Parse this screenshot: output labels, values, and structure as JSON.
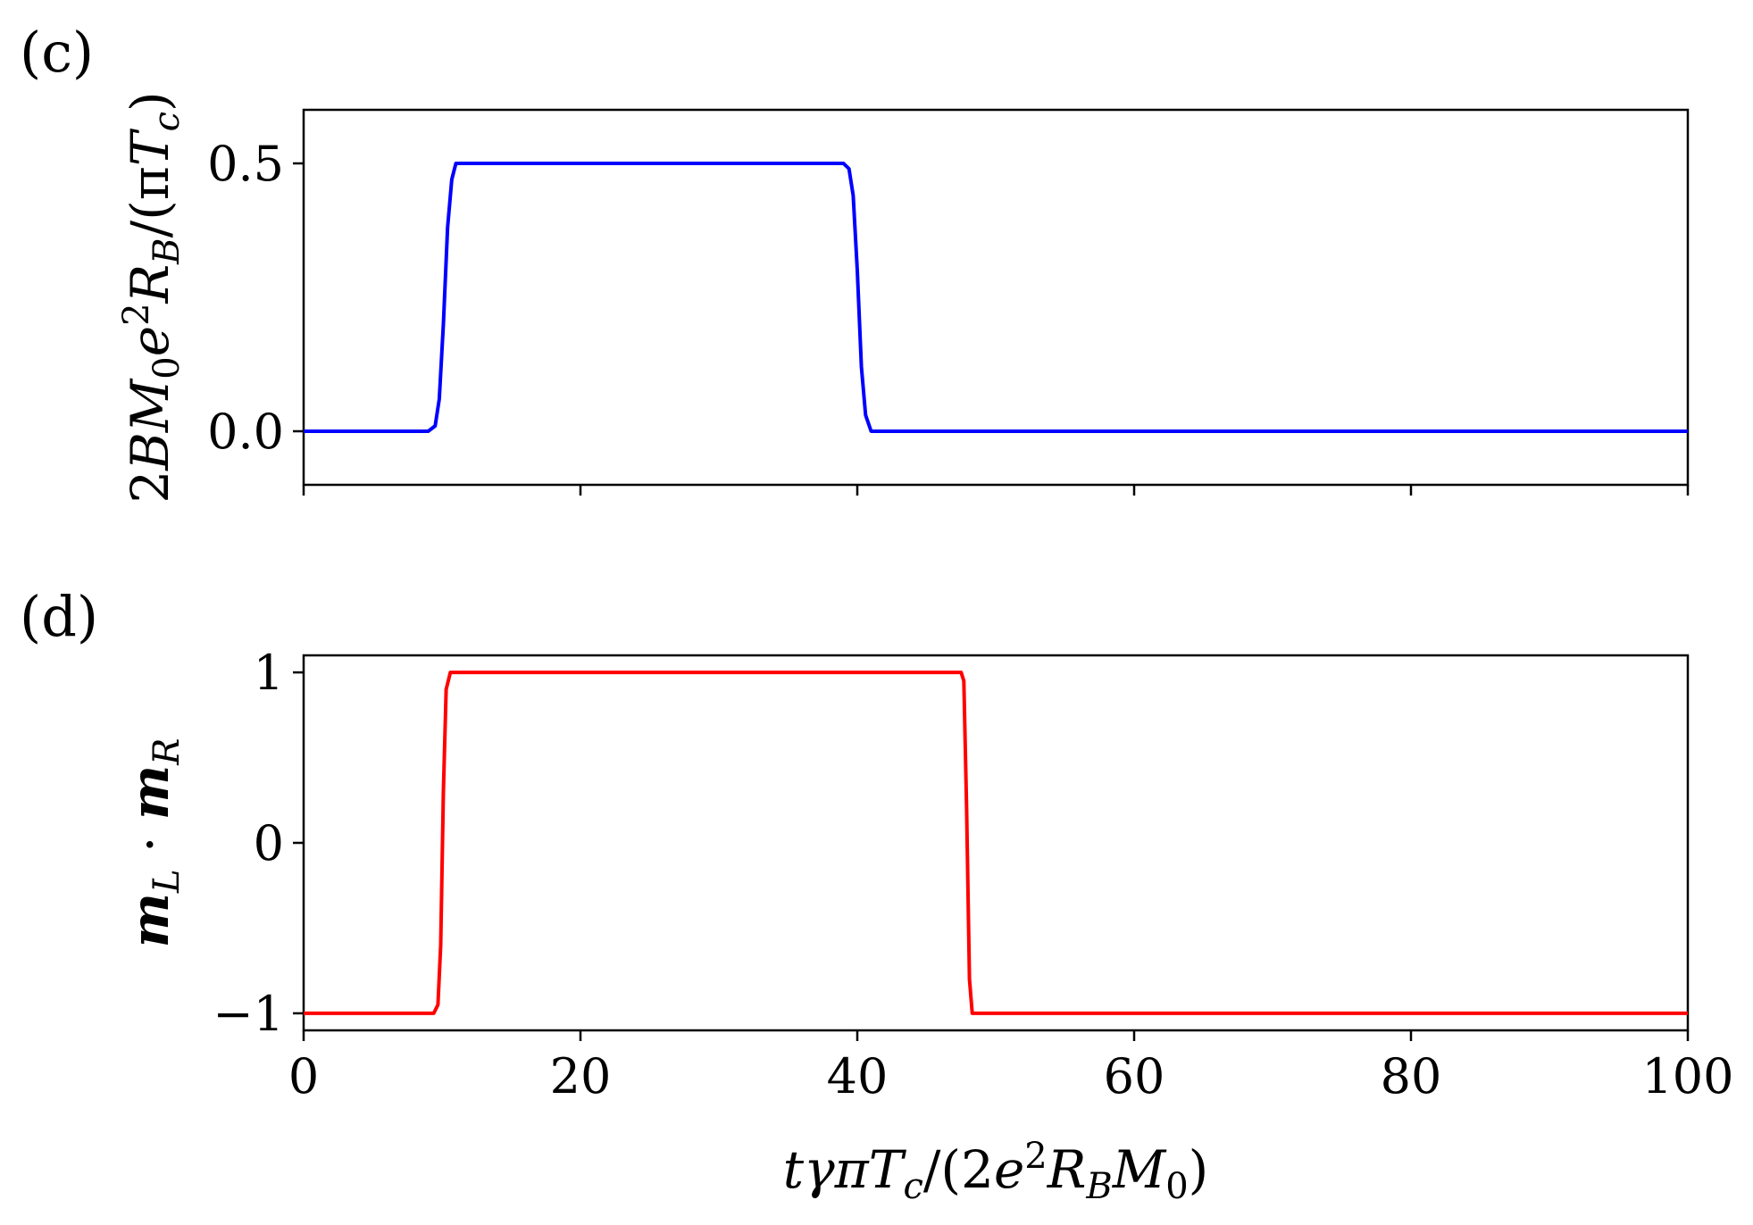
{
  "chart_data": [
    {
      "panel_label": "(c)",
      "type": "line",
      "xlim": [
        0,
        100
      ],
      "ylim": [
        -0.1,
        0.6
      ],
      "x_ticks": [
        0,
        20,
        40,
        60,
        80,
        100
      ],
      "x_tick_labels_shown": false,
      "y_ticks": [
        0.0,
        0.5
      ],
      "y_tick_labels": [
        "0.0",
        "0.5"
      ],
      "ylabel": "2BM₀e²R_B/(πT_c)",
      "xlabel": "",
      "grid": false,
      "series": [
        {
          "color": "#0000ff",
          "x": [
            0,
            9.0,
            9.5,
            9.8,
            10.1,
            10.4,
            10.7,
            11.0,
            12.0,
            39.0,
            39.4,
            39.7,
            40.0,
            40.3,
            40.6,
            41.0,
            100
          ],
          "y": [
            0,
            0,
            0.01,
            0.06,
            0.2,
            0.38,
            0.47,
            0.5,
            0.5,
            0.5,
            0.49,
            0.44,
            0.3,
            0.12,
            0.03,
            0,
            0
          ]
        }
      ]
    },
    {
      "panel_label": "(d)",
      "type": "line",
      "xlim": [
        0,
        100
      ],
      "ylim": [
        -1.1,
        1.1
      ],
      "x_ticks": [
        0,
        20,
        40,
        60,
        80,
        100
      ],
      "x_tick_labels": [
        "0",
        "20",
        "40",
        "60",
        "80",
        "100"
      ],
      "y_ticks": [
        -1,
        0,
        1
      ],
      "y_tick_labels": [
        "−1",
        "0",
        "1"
      ],
      "ylabel": "m_L · m_R",
      "xlabel": "tγπT_c/(2e²R_BM₀)",
      "grid": false,
      "series": [
        {
          "color": "#ff0000",
          "x": [
            0,
            9.4,
            9.7,
            9.9,
            10.1,
            10.3,
            10.6,
            47.5,
            47.7,
            47.9,
            48.1,
            48.3,
            100
          ],
          "y": [
            -1,
            -1,
            -0.95,
            -0.6,
            0.3,
            0.9,
            1,
            1,
            0.95,
            0.2,
            -0.8,
            -1,
            -1
          ]
        }
      ]
    }
  ],
  "colors": {
    "axes": "#000000",
    "background": "#ffffff"
  }
}
